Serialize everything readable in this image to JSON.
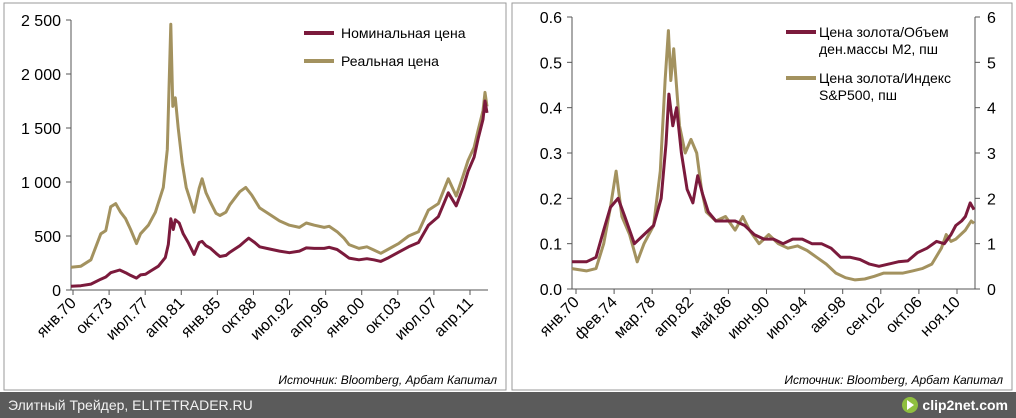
{
  "chart_data": [
    {
      "type": "line",
      "title": "",
      "x_categories": [
        "янв.70",
        "окт.73",
        "июл.77",
        "апр.81",
        "янв.85",
        "окт.88",
        "июл.92",
        "апр.96",
        "янв.00",
        "окт.03",
        "июл.07",
        "апр.11"
      ],
      "ylim": [
        0,
        2500
      ],
      "y_ticks": [
        0,
        500,
        1000,
        1500,
        2000,
        2500
      ],
      "y_tick_labels": [
        "0",
        "500",
        "1 000",
        "1 500",
        "2 000",
        "2 500"
      ],
      "legend": [
        "Номинальная цена",
        "Реальная цена"
      ],
      "source": "Источник: Bloomberg, Арбат Капитал",
      "series": [
        {
          "name": "Номинальная цена",
          "color": "#7b1a3c",
          "points": [
            [
              1970.0,
              35
            ],
            [
              1971.0,
              40
            ],
            [
              1972.0,
              55
            ],
            [
              1973.0,
              100
            ],
            [
              1973.5,
              120
            ],
            [
              1974.0,
              160
            ],
            [
              1974.9,
              185
            ],
            [
              1975.5,
              160
            ],
            [
              1976.0,
              135
            ],
            [
              1976.6,
              110
            ],
            [
              1977.0,
              140
            ],
            [
              1977.5,
              145
            ],
            [
              1978.0,
              175
            ],
            [
              1978.8,
              220
            ],
            [
              1979.5,
              300
            ],
            [
              1979.8,
              420
            ],
            [
              1980.05,
              660
            ],
            [
              1980.3,
              560
            ],
            [
              1980.5,
              650
            ],
            [
              1980.9,
              620
            ],
            [
              1981.3,
              520
            ],
            [
              1981.8,
              440
            ],
            [
              1982.4,
              330
            ],
            [
              1982.9,
              440
            ],
            [
              1983.2,
              450
            ],
            [
              1983.6,
              410
            ],
            [
              1984.0,
              390
            ],
            [
              1984.6,
              340
            ],
            [
              1985.0,
              310
            ],
            [
              1985.6,
              320
            ],
            [
              1986.0,
              350
            ],
            [
              1986.5,
              380
            ],
            [
              1987.0,
              410
            ],
            [
              1987.5,
              450
            ],
            [
              1987.9,
              480
            ],
            [
              1988.5,
              440
            ],
            [
              1989.0,
              400
            ],
            [
              1990.0,
              380
            ],
            [
              1991.0,
              360
            ],
            [
              1992.0,
              345
            ],
            [
              1993.0,
              360
            ],
            [
              1993.7,
              390
            ],
            [
              1994.5,
              385
            ],
            [
              1995.5,
              385
            ],
            [
              1996.0,
              395
            ],
            [
              1996.8,
              375
            ],
            [
              1997.5,
              330
            ],
            [
              1998.0,
              295
            ],
            [
              1999.0,
              280
            ],
            [
              1999.8,
              290
            ],
            [
              2000.5,
              280
            ],
            [
              2001.2,
              265
            ],
            [
              2002.0,
              300
            ],
            [
              2003.0,
              350
            ],
            [
              2004.0,
              400
            ],
            [
              2005.0,
              440
            ],
            [
              2006.0,
              600
            ],
            [
              2007.0,
              680
            ],
            [
              2008.0,
              900
            ],
            [
              2008.8,
              780
            ],
            [
              2009.5,
              950
            ],
            [
              2010.0,
              1100
            ],
            [
              2010.6,
              1230
            ],
            [
              2011.0,
              1400
            ],
            [
              2011.5,
              1580
            ],
            [
              2011.7,
              1750
            ],
            [
              2011.9,
              1640
            ]
          ]
        },
        {
          "name": "Реальная цена",
          "color": "#a3925f",
          "points": [
            [
              1970.0,
              210
            ],
            [
              1971.0,
              220
            ],
            [
              1972.0,
              280
            ],
            [
              1973.0,
              520
            ],
            [
              1973.5,
              550
            ],
            [
              1974.0,
              770
            ],
            [
              1974.5,
              800
            ],
            [
              1975.0,
              720
            ],
            [
              1975.5,
              660
            ],
            [
              1976.0,
              560
            ],
            [
              1976.6,
              430
            ],
            [
              1977.0,
              520
            ],
            [
              1977.8,
              600
            ],
            [
              1978.5,
              720
            ],
            [
              1979.3,
              950
            ],
            [
              1979.7,
              1300
            ],
            [
              1980.05,
              2460
            ],
            [
              1980.25,
              1700
            ],
            [
              1980.5,
              1780
            ],
            [
              1980.8,
              1500
            ],
            [
              1981.2,
              1180
            ],
            [
              1981.6,
              950
            ],
            [
              1982.4,
              720
            ],
            [
              1982.9,
              940
            ],
            [
              1983.2,
              1030
            ],
            [
              1983.6,
              900
            ],
            [
              1984.0,
              820
            ],
            [
              1984.6,
              710
            ],
            [
              1985.0,
              690
            ],
            [
              1985.6,
              720
            ],
            [
              1986.0,
              790
            ],
            [
              1986.5,
              850
            ],
            [
              1987.0,
              910
            ],
            [
              1987.6,
              950
            ],
            [
              1988.2,
              880
            ],
            [
              1989.0,
              760
            ],
            [
              1990.0,
              700
            ],
            [
              1991.0,
              640
            ],
            [
              1992.0,
              600
            ],
            [
              1993.0,
              580
            ],
            [
              1993.7,
              620
            ],
            [
              1994.5,
              600
            ],
            [
              1995.5,
              580
            ],
            [
              1996.0,
              590
            ],
            [
              1996.8,
              540
            ],
            [
              1997.5,
              480
            ],
            [
              1998.0,
              420
            ],
            [
              1999.0,
              385
            ],
            [
              1999.8,
              400
            ],
            [
              2000.5,
              370
            ],
            [
              2001.2,
              340
            ],
            [
              2002.0,
              380
            ],
            [
              2003.0,
              430
            ],
            [
              2004.0,
              500
            ],
            [
              2005.0,
              540
            ],
            [
              2006.0,
              740
            ],
            [
              2007.0,
              800
            ],
            [
              2008.0,
              1030
            ],
            [
              2008.8,
              870
            ],
            [
              2009.5,
              1060
            ],
            [
              2010.0,
              1200
            ],
            [
              2010.6,
              1320
            ],
            [
              2011.0,
              1480
            ],
            [
              2011.5,
              1660
            ],
            [
              2011.7,
              1830
            ],
            [
              2011.9,
              1700
            ]
          ]
        }
      ]
    },
    {
      "type": "line",
      "title": "",
      "x_categories": [
        "янв.70",
        "фев.74",
        "мар.78",
        "апр.82",
        "май.86",
        "июн.90",
        "июл.94",
        "авг.98",
        "сен.02",
        "окт.06",
        "ноя.10"
      ],
      "ylim_left": [
        0,
        0.6
      ],
      "ylim_right": [
        0,
        6
      ],
      "y_ticks_left": [
        0.0,
        0.1,
        0.2,
        0.3,
        0.4,
        0.5,
        0.6
      ],
      "y_tick_labels_left": [
        "0.0",
        "0.1",
        "0.2",
        "0.3",
        "0.4",
        "0.5",
        "0.6"
      ],
      "y_ticks_right": [
        0,
        1,
        2,
        3,
        4,
        5,
        6
      ],
      "y_tick_labels_right": [
        "0",
        "1",
        "2",
        "3",
        "4",
        "5",
        "6"
      ],
      "legend": [
        "Цена золота/Объем ден.массы М2, пш",
        "Цена золота/Индекс S&P500, пш"
      ],
      "source": "Источник: Bloomberg, Арбат Капитал",
      "series": [
        {
          "name": "Цена золота/Объем ден.массы М2, пш",
          "axis": "left",
          "color": "#7b1a3c",
          "points": [
            [
              1970.0,
              0.06
            ],
            [
              1971.5,
              0.06
            ],
            [
              1972.5,
              0.07
            ],
            [
              1973.3,
              0.13
            ],
            [
              1974.0,
              0.18
            ],
            [
              1974.8,
              0.2
            ],
            [
              1975.5,
              0.16
            ],
            [
              1976.5,
              0.1
            ],
            [
              1977.5,
              0.12
            ],
            [
              1978.5,
              0.14
            ],
            [
              1979.3,
              0.2
            ],
            [
              1979.8,
              0.32
            ],
            [
              1980.1,
              0.43
            ],
            [
              1980.5,
              0.36
            ],
            [
              1980.9,
              0.4
            ],
            [
              1981.4,
              0.3
            ],
            [
              1982.0,
              0.22
            ],
            [
              1982.6,
              0.19
            ],
            [
              1983.1,
              0.25
            ],
            [
              1983.6,
              0.21
            ],
            [
              1984.2,
              0.17
            ],
            [
              1985.0,
              0.15
            ],
            [
              1986.0,
              0.15
            ],
            [
              1987.0,
              0.15
            ],
            [
              1988.0,
              0.14
            ],
            [
              1989.0,
              0.12
            ],
            [
              1990.0,
              0.11
            ],
            [
              1991.0,
              0.11
            ],
            [
              1992.0,
              0.1
            ],
            [
              1993.0,
              0.11
            ],
            [
              1994.0,
              0.11
            ],
            [
              1995.0,
              0.1
            ],
            [
              1996.0,
              0.1
            ],
            [
              1997.0,
              0.09
            ],
            [
              1998.0,
              0.07
            ],
            [
              1999.0,
              0.07
            ],
            [
              2000.0,
              0.065
            ],
            [
              2001.0,
              0.055
            ],
            [
              2002.0,
              0.05
            ],
            [
              2003.0,
              0.055
            ],
            [
              2004.0,
              0.06
            ],
            [
              2005.0,
              0.062
            ],
            [
              2006.0,
              0.08
            ],
            [
              2007.0,
              0.09
            ],
            [
              2008.0,
              0.105
            ],
            [
              2008.8,
              0.1
            ],
            [
              2009.5,
              0.12
            ],
            [
              2010.0,
              0.14
            ],
            [
              2010.6,
              0.15
            ],
            [
              2011.0,
              0.16
            ],
            [
              2011.5,
              0.19
            ],
            [
              2011.9,
              0.175
            ]
          ]
        },
        {
          "name": "Цена золота/Индекс S&P500, пш",
          "axis": "right",
          "color": "#a3925f",
          "points": [
            [
              1970.0,
              0.45
            ],
            [
              1971.5,
              0.4
            ],
            [
              1972.5,
              0.45
            ],
            [
              1973.3,
              1.0
            ],
            [
              1974.0,
              1.8
            ],
            [
              1974.6,
              2.6
            ],
            [
              1975.2,
              1.6
            ],
            [
              1976.0,
              1.2
            ],
            [
              1976.8,
              0.6
            ],
            [
              1977.5,
              1.0
            ],
            [
              1978.5,
              1.4
            ],
            [
              1979.2,
              2.6
            ],
            [
              1979.7,
              4.6
            ],
            [
              1980.05,
              5.7
            ],
            [
              1980.3,
              4.6
            ],
            [
              1980.6,
              5.3
            ],
            [
              1981.2,
              3.6
            ],
            [
              1981.8,
              3.0
            ],
            [
              1982.4,
              3.3
            ],
            [
              1983.0,
              3.0
            ],
            [
              1983.5,
              2.2
            ],
            [
              1984.0,
              1.7
            ],
            [
              1985.0,
              1.5
            ],
            [
              1986.0,
              1.6
            ],
            [
              1987.0,
              1.3
            ],
            [
              1987.8,
              1.6
            ],
            [
              1988.5,
              1.3
            ],
            [
              1989.5,
              1.0
            ],
            [
              1990.5,
              1.2
            ],
            [
              1991.5,
              1.0
            ],
            [
              1992.5,
              0.9
            ],
            [
              1993.5,
              0.95
            ],
            [
              1994.5,
              0.85
            ],
            [
              1995.5,
              0.7
            ],
            [
              1996.5,
              0.55
            ],
            [
              1997.5,
              0.35
            ],
            [
              1998.5,
              0.25
            ],
            [
              1999.5,
              0.2
            ],
            [
              2000.5,
              0.22
            ],
            [
              2001.5,
              0.28
            ],
            [
              2002.5,
              0.35
            ],
            [
              2003.5,
              0.35
            ],
            [
              2004.5,
              0.35
            ],
            [
              2005.5,
              0.4
            ],
            [
              2006.5,
              0.45
            ],
            [
              2007.5,
              0.55
            ],
            [
              2008.5,
              0.9
            ],
            [
              2009.0,
              1.2
            ],
            [
              2009.5,
              1.05
            ],
            [
              2010.0,
              1.1
            ],
            [
              2010.5,
              1.2
            ],
            [
              2011.0,
              1.3
            ],
            [
              2011.6,
              1.5
            ],
            [
              2011.9,
              1.45
            ]
          ]
        }
      ]
    }
  ],
  "footer": {
    "left_text": "Элитный Трейдер, ELITETRADER.RU",
    "brand_text": "clip2net.com"
  }
}
